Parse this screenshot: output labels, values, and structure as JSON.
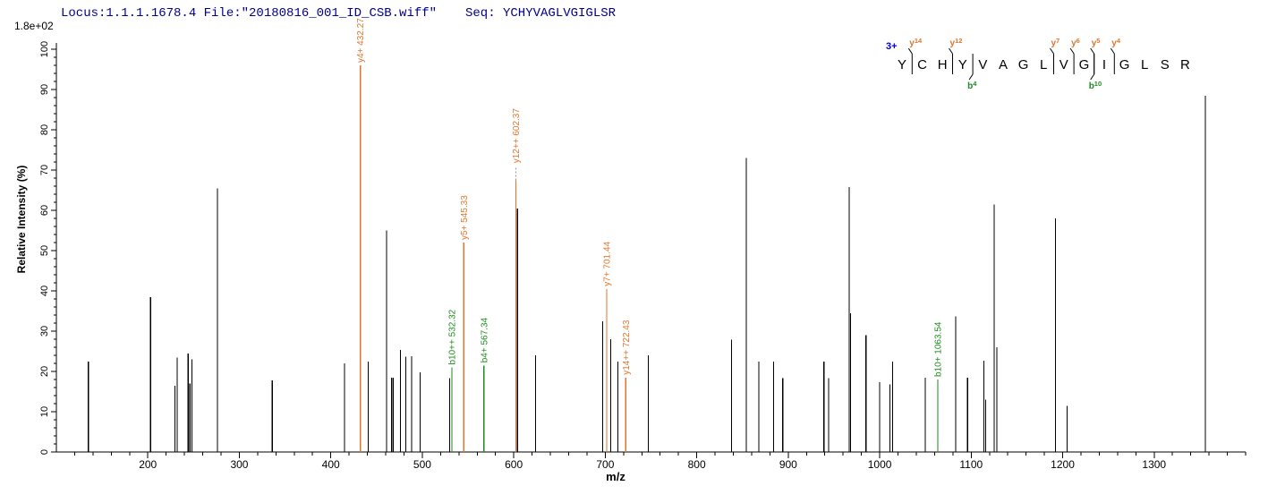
{
  "header": {
    "locus_file": "Locus:1.1.1.1678.4 File:\"20180816_001_ID_CSB.wiff\"",
    "seq_label": "Seq: YCHYVAGLVGIGLSR"
  },
  "chart_data": {
    "type": "bar",
    "subtype": "ms2-centroid-stick-spectrum",
    "title": "",
    "xlabel": "m/z",
    "ylabel": "Relative Intensity (%)",
    "y_scale_note": "1.8e+02",
    "xlim": [
      100,
      1400
    ],
    "ylim": [
      0,
      100
    ],
    "x_major_step": 100,
    "x_major_label_start": 200,
    "x_major_label_end": 1300,
    "x_minor_step": 20,
    "y_major_step": 10,
    "y_minor_step": 2,
    "grid": false,
    "legend": "none",
    "ion_colors": {
      "y": "#e0762e",
      "b": "#1e8b1e",
      "unassigned": "#000000",
      "leader": "#999999"
    },
    "peaks": [
      {
        "mz": 135,
        "intensity": 22.5,
        "ion": "unassigned"
      },
      {
        "mz": 203,
        "intensity": 38.5,
        "ion": "unassigned"
      },
      {
        "mz": 229.5,
        "intensity": 16.5,
        "ion": "unassigned"
      },
      {
        "mz": 232,
        "intensity": 23.5,
        "ion": "unassigned"
      },
      {
        "mz": 244,
        "intensity": 24.5,
        "ion": "unassigned"
      },
      {
        "mz": 246,
        "intensity": 17,
        "ion": "unassigned"
      },
      {
        "mz": 248,
        "intensity": 23,
        "ion": "unassigned"
      },
      {
        "mz": 276,
        "intensity": 65.5,
        "ion": "unassigned"
      },
      {
        "mz": 336,
        "intensity": 17.8,
        "ion": "unassigned"
      },
      {
        "mz": 415,
        "intensity": 22,
        "ion": "unassigned"
      },
      {
        "mz": 432.27,
        "intensity": 100,
        "ion": "y",
        "label": "y4+ 432.27"
      },
      {
        "mz": 441,
        "intensity": 22.4,
        "ion": "unassigned"
      },
      {
        "mz": 461,
        "intensity": 55,
        "ion": "unassigned"
      },
      {
        "mz": 466.5,
        "intensity": 18.4,
        "ion": "unassigned"
      },
      {
        "mz": 468,
        "intensity": 18.4,
        "ion": "unassigned"
      },
      {
        "mz": 476,
        "intensity": 25.3,
        "ion": "unassigned"
      },
      {
        "mz": 482,
        "intensity": 23.7,
        "ion": "unassigned"
      },
      {
        "mz": 488.5,
        "intensity": 23.8,
        "ion": "unassigned"
      },
      {
        "mz": 497.5,
        "intensity": 19.8,
        "ion": "unassigned"
      },
      {
        "mz": 530,
        "intensity": 18.3,
        "ion": "unassigned"
      },
      {
        "mz": 532.32,
        "intensity": 21,
        "ion": "b",
        "label": "b10++ 532.32"
      },
      {
        "mz": 545.33,
        "intensity": 52,
        "ion": "y",
        "label": "y5+ 545.33"
      },
      {
        "mz": 567.34,
        "intensity": 21.5,
        "ion": "b",
        "label": "b4+ 567.34"
      },
      {
        "mz": 602.37,
        "intensity": 67.5,
        "ion": "y",
        "label": "y12++ 602.37",
        "leader": true
      },
      {
        "mz": 604,
        "intensity": 60.5,
        "ion": "unassigned"
      },
      {
        "mz": 624,
        "intensity": 24,
        "ion": "unassigned"
      },
      {
        "mz": 697,
        "intensity": 32.4,
        "ion": "unassigned"
      },
      {
        "mz": 701.44,
        "intensity": 40.5,
        "ion": "y",
        "label": "y7+ 701.44"
      },
      {
        "mz": 706,
        "intensity": 28,
        "ion": "unassigned"
      },
      {
        "mz": 714,
        "intensity": 22.4,
        "ion": "unassigned"
      },
      {
        "mz": 722.43,
        "intensity": 18.5,
        "ion": "y",
        "label": "y14++ 722.43"
      },
      {
        "mz": 747,
        "intensity": 24,
        "ion": "unassigned"
      },
      {
        "mz": 838,
        "intensity": 27.9,
        "ion": "unassigned"
      },
      {
        "mz": 854,
        "intensity": 73,
        "ion": "unassigned"
      },
      {
        "mz": 868,
        "intensity": 22.4,
        "ion": "unassigned"
      },
      {
        "mz": 884,
        "intensity": 22.4,
        "ion": "unassigned"
      },
      {
        "mz": 894,
        "intensity": 18.3,
        "ion": "unassigned"
      },
      {
        "mz": 939,
        "intensity": 22.4,
        "ion": "unassigned"
      },
      {
        "mz": 944,
        "intensity": 18.3,
        "ion": "unassigned"
      },
      {
        "mz": 966.5,
        "intensity": 65.8,
        "ion": "unassigned"
      },
      {
        "mz": 968,
        "intensity": 34.4,
        "ion": "unassigned"
      },
      {
        "mz": 985,
        "intensity": 29,
        "ion": "unassigned"
      },
      {
        "mz": 1000,
        "intensity": 17.3,
        "ion": "unassigned"
      },
      {
        "mz": 1011,
        "intensity": 16.8,
        "ion": "unassigned"
      },
      {
        "mz": 1014,
        "intensity": 22.5,
        "ion": "unassigned"
      },
      {
        "mz": 1050,
        "intensity": 18.5,
        "ion": "unassigned"
      },
      {
        "mz": 1063.54,
        "intensity": 18,
        "ion": "b",
        "label": "b10+ 1063.54"
      },
      {
        "mz": 1083,
        "intensity": 33.7,
        "ion": "unassigned"
      },
      {
        "mz": 1096,
        "intensity": 18.5,
        "ion": "unassigned"
      },
      {
        "mz": 1114,
        "intensity": 22.7,
        "ion": "unassigned"
      },
      {
        "mz": 1116,
        "intensity": 13,
        "ion": "unassigned"
      },
      {
        "mz": 1125,
        "intensity": 61.5,
        "ion": "unassigned"
      },
      {
        "mz": 1128,
        "intensity": 26,
        "ion": "unassigned"
      },
      {
        "mz": 1192,
        "intensity": 58,
        "ion": "unassigned"
      },
      {
        "mz": 1205,
        "intensity": 11.5,
        "ion": "unassigned"
      },
      {
        "mz": 1356,
        "intensity": 88.4,
        "ion": "unassigned"
      }
    ]
  },
  "sequence_panel": {
    "charge": "3+",
    "residues": [
      "Y",
      "C",
      "H",
      "Y",
      "V",
      "A",
      "G",
      "L",
      "V",
      "G",
      "I",
      "G",
      "L",
      "S",
      "R"
    ],
    "fragments": [
      {
        "type": "y",
        "letter": "y",
        "num": "14",
        "after": 1
      },
      {
        "type": "y",
        "letter": "y",
        "num": "12",
        "after": 3
      },
      {
        "type": "b",
        "letter": "b",
        "num": "4",
        "after": 4
      },
      {
        "type": "y",
        "letter": "y",
        "num": "7",
        "after": 8
      },
      {
        "type": "y",
        "letter": "y",
        "num": "6",
        "after": 9
      },
      {
        "type": "y",
        "letter": "y",
        "num": "5",
        "after": 10
      },
      {
        "type": "b",
        "letter": "b",
        "num": "10",
        "after": 10
      },
      {
        "type": "y",
        "letter": "y",
        "num": "4",
        "after": 11
      }
    ]
  }
}
